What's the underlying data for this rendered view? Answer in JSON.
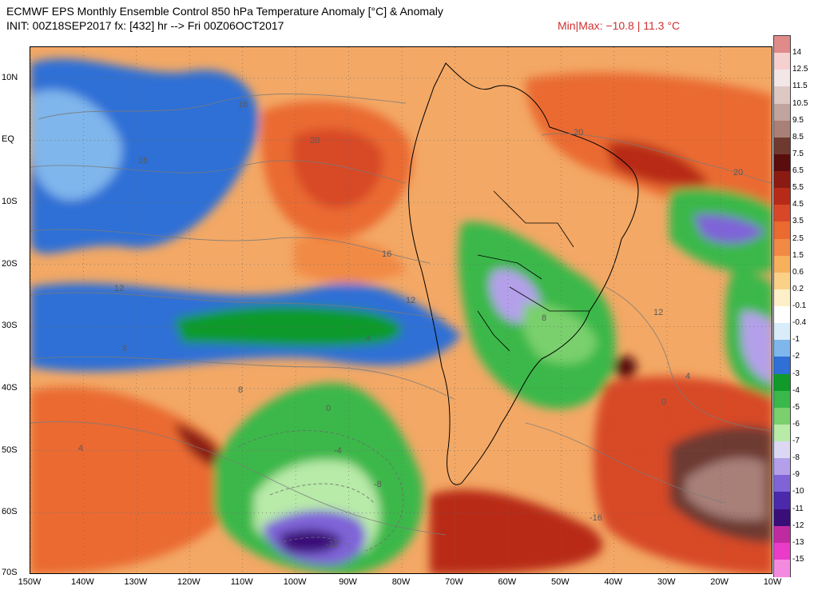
{
  "header": {
    "title": "ECMWF EPS Monthly Ensemble Control 850 hPa Temperature Anomaly [°C] & Anomaly",
    "subtitle": "INIT: 00Z18SEP2017 fx: [432] hr --> Fri 00Z06OCT2017",
    "minmax": "Min|Max: −10.8 | 11.3 °C"
  },
  "map": {
    "region": "South America and surrounding oceans",
    "lon_range": [
      -150,
      -10
    ],
    "lat_range": [
      -70,
      15
    ],
    "lat_labels": [
      "10N",
      "EQ",
      "10S",
      "20S",
      "30S",
      "40S",
      "50S",
      "60S",
      "70S"
    ],
    "lon_labels": [
      "150W",
      "140W",
      "130W",
      "120W",
      "110W",
      "100W",
      "90W",
      "80W",
      "70W",
      "60W",
      "50W",
      "40W",
      "30W",
      "20W",
      "10W"
    ],
    "contour_labels": [
      "20",
      "20",
      "20",
      "16",
      "16",
      "16",
      "12",
      "12",
      "12",
      "8",
      "8",
      "8",
      "4",
      "4",
      "4",
      "0",
      "0",
      "-4",
      "-8",
      "-12",
      "-16"
    ]
  },
  "colorbar": {
    "labels": [
      "14",
      "12.5",
      "11.5",
      "10.5",
      "9.5",
      "8.5",
      "7.5",
      "6.5",
      "5.5",
      "4.5",
      "3.5",
      "2.5",
      "1.5",
      "0.6",
      "0.2",
      "-0.1",
      "-0.4",
      "-1",
      "-2",
      "-3",
      "-4",
      "-5",
      "-6",
      "-7",
      "-8",
      "-9",
      "-10",
      "-11",
      "-12",
      "-13",
      "-15"
    ],
    "colors": [
      "#e08a8a",
      "#f6d0d0",
      "#f3e6e6",
      "#ddc8c4",
      "#c2a49e",
      "#a88078",
      "#6e3a30",
      "#5a0d0d",
      "#8a1a12",
      "#b82a18",
      "#d84828",
      "#ea6a30",
      "#f18a45",
      "#f7b05c",
      "#fbd188",
      "#fdf0c8",
      "#ffffff",
      "#d8ecfa",
      "#7fb6ec",
      "#2f6fd6",
      "#0f9a2a",
      "#3ab84a",
      "#79d06c",
      "#b8eaa8",
      "#dcd8f4",
      "#b4a0ea",
      "#7f64d8",
      "#4a2aaa",
      "#3a0e78",
      "#c02aa0",
      "#ea3cc8",
      "#f48ae0"
    ]
  }
}
